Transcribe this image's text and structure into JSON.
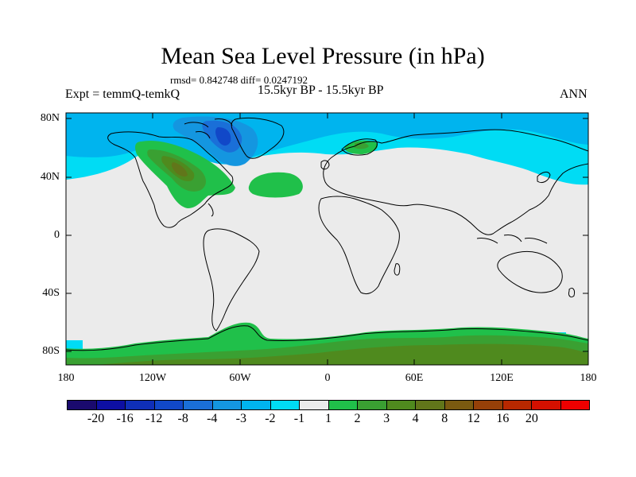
{
  "title": "Mean Sea Level Pressure (in hPa)",
  "stats": "rmsd= 0.842748 diff= 0.0247192",
  "experiment": "Expt = temmQ-temkQ",
  "period": "15.5kyr BP - 15.5kyr BP",
  "season": "ANN",
  "axes": {
    "lat_labels": [
      "80N",
      "40N",
      "0",
      "40S",
      "80S"
    ],
    "lon_labels": [
      "180",
      "120W",
      "60W",
      "0",
      "60E",
      "120E",
      "180"
    ]
  },
  "colorbar": {
    "colors": [
      "#1a0a6e",
      "#0d0fa3",
      "#0f2fb8",
      "#1148c8",
      "#1a6fd8",
      "#1496e0",
      "#00b4ee",
      "#00dcf4",
      "#ebebeb",
      "#20c04a",
      "#3aa032",
      "#4f8a1e",
      "#61761a",
      "#7a5a10",
      "#964008",
      "#b82800",
      "#d41000",
      "#ee0000"
    ],
    "labels": [
      "-20",
      "-16",
      "-12",
      "-8",
      "-4",
      "-3",
      "-2",
      "-1",
      "1",
      "2",
      "3",
      "4",
      "8",
      "12",
      "16",
      "20"
    ]
  },
  "map_colors": {
    "background": "#ebebeb",
    "neg1": "#00dcf4",
    "neg2": "#00b4ee",
    "neg3": "#1496e0",
    "neg4": "#1a6fd8",
    "neg8": "#1148c8",
    "pos1": "#20c04a",
    "pos2": "#3aa032",
    "pos3": "#4f8a1e",
    "pos4": "#61761a"
  }
}
